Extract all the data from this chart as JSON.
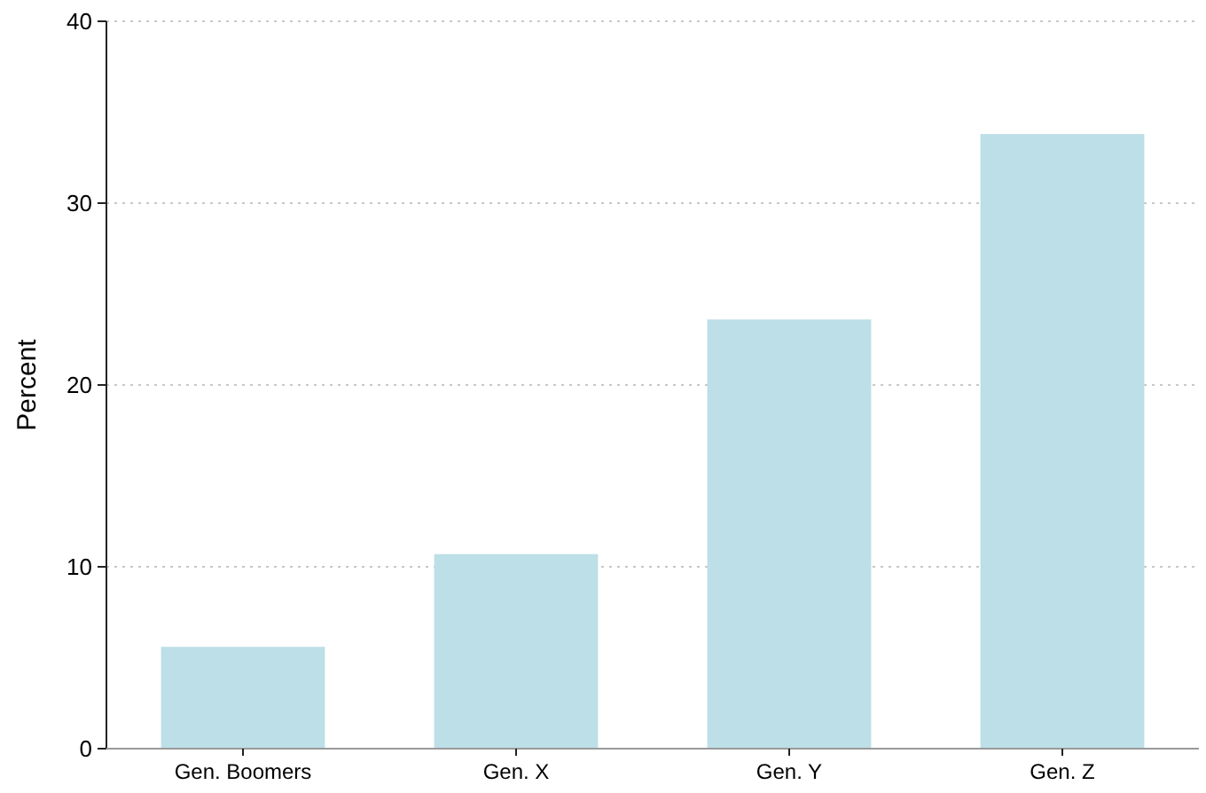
{
  "chart_data": {
    "type": "bar",
    "ylabel": "Percent",
    "categories": [
      "Gen. Boomers",
      "Gen. X",
      "Gen. Y",
      "Gen. Z"
    ],
    "values": [
      5.6,
      10.7,
      23.6,
      33.8
    ],
    "color": "#bddfe7",
    "ylim": [
      0,
      40
    ],
    "yticks": [
      0,
      10,
      20,
      30,
      40
    ],
    "grid": "y"
  }
}
